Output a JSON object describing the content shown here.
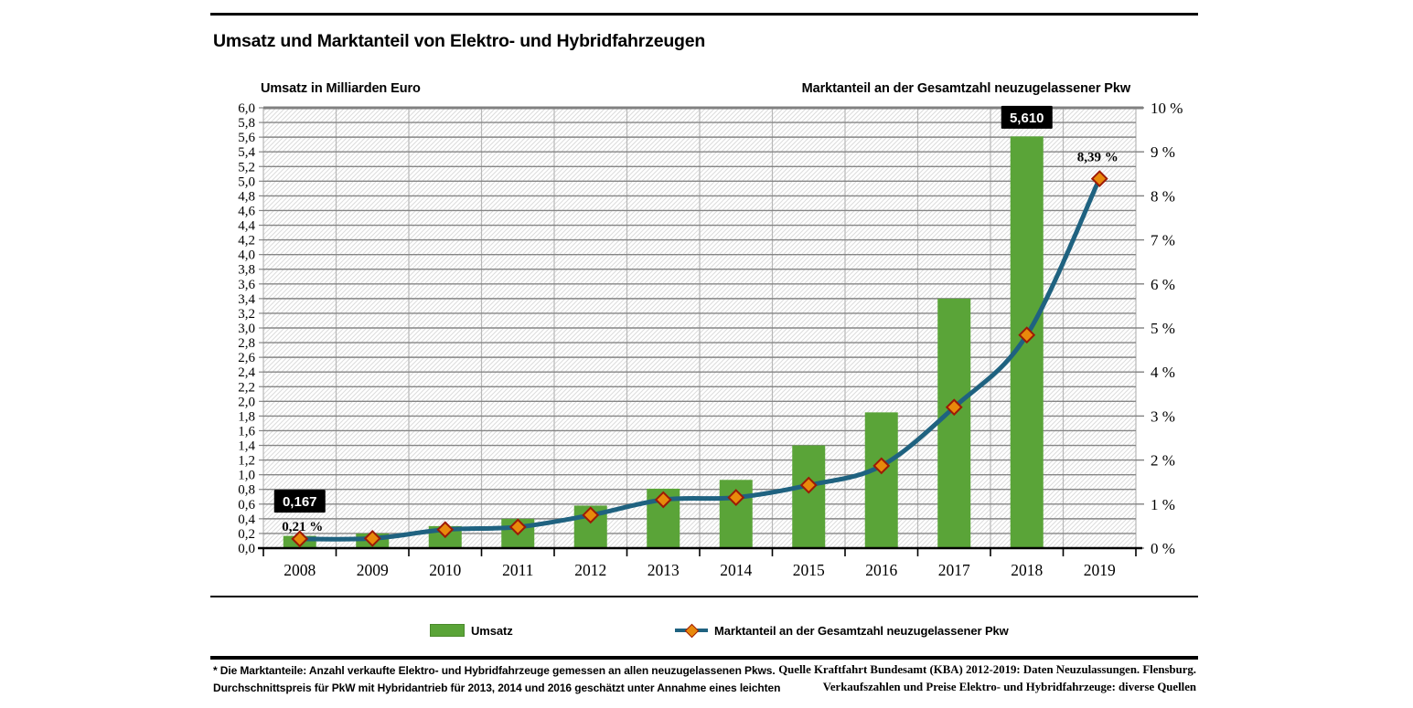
{
  "page": {
    "title": "Umsatz und Marktanteil von Elektro- und Hybridfahrzeugen"
  },
  "chart_data": {
    "type": "bar+line combo, dual axis",
    "title": "Umsatz und Marktanteil von Elektro- und Hybridfahrzeugen",
    "categories": [
      "2008",
      "2009",
      "2010",
      "2011",
      "2012",
      "2013",
      "2014",
      "2015",
      "2016",
      "2017",
      "2018",
      "2019"
    ],
    "series": [
      {
        "name": "Umsatz",
        "type": "bar",
        "axis": "left",
        "color": "#5AA438",
        "values": [
          0.167,
          0.2,
          0.3,
          0.4,
          0.58,
          0.81,
          0.93,
          1.4,
          1.85,
          3.4,
          5.61,
          null
        ]
      },
      {
        "name": "Marktanteil an der Gesamtzahl neuzugelassener Pkw",
        "type": "line",
        "axis": "right",
        "color": "#1F6280",
        "marker": {
          "shape": "diamond",
          "fill": "#E8890B",
          "stroke": "#9C1A06"
        },
        "values": [
          0.21,
          0.22,
          0.42,
          0.48,
          0.75,
          1.1,
          1.15,
          1.43,
          1.87,
          3.2,
          4.84,
          8.39
        ]
      }
    ],
    "left_axis": {
      "title": "Umsatz in Milliarden Euro",
      "min": 0,
      "max": 6,
      "step": 0.2,
      "decimals": 1,
      "decimal_separator": ","
    },
    "right_axis": {
      "title": "Marktanteil an der Gesamtzahl neuzugelassener Pkw",
      "min": 0,
      "max": 10,
      "step": 1,
      "suffix": " %"
    },
    "data_labels": [
      {
        "series": 0,
        "index": 0,
        "text": "0,167",
        "style": "box"
      },
      {
        "series": 1,
        "index": 0,
        "text": "0,21 %",
        "style": "plain"
      },
      {
        "series": 0,
        "index": 10,
        "text": "5,610",
        "style": "box"
      },
      {
        "series": 1,
        "index": 11,
        "text": "8,39 %",
        "style": "plain"
      }
    ],
    "legend": {
      "position": "bottom",
      "items": [
        {
          "label": "Umsatz",
          "swatch": "bar",
          "color": "#5AA438"
        },
        {
          "label": "Marktanteil an der Gesamtzahl neuzugelassener Pkw",
          "swatch": "line-diamond",
          "line_color": "#1F6280",
          "marker_fill": "#E8890B",
          "marker_stroke": "#9C1A06"
        }
      ]
    },
    "grid": {
      "horizontal": true,
      "vertical": true,
      "hatch_background": true,
      "grid_color": "#858585",
      "vertical_grid_color": "#B8B8B8",
      "hatch_color": "#DCDCDC"
    }
  },
  "footnotes": {
    "left_line1": "* Die Marktanteile: Anzahl verkaufte Elektro- und Hybridfahrzeuge gemessen an allen neuzugelassenen Pkws.",
    "left_line2": "Durchschnittspreis für PkW mit Hybridantrieb für 2013, 2014 und 2016 geschätzt unter Annahme eines leichten",
    "source_line1": "Quelle Kraftfahrt Bundesamt (KBA) 2012-2019: Daten Neuzulassungen. Flensburg.",
    "source_line2": "Verkaufszahlen und Preise Elektro- und Hybridfahrzeuge: diverse Quellen"
  },
  "colors": {
    "bar": "#5AA438",
    "line": "#1F6280",
    "marker_fill": "#E8890B",
    "marker_stroke": "#9C1A06",
    "label_box_bg": "#000000",
    "label_box_text": "#FFFFFF"
  }
}
